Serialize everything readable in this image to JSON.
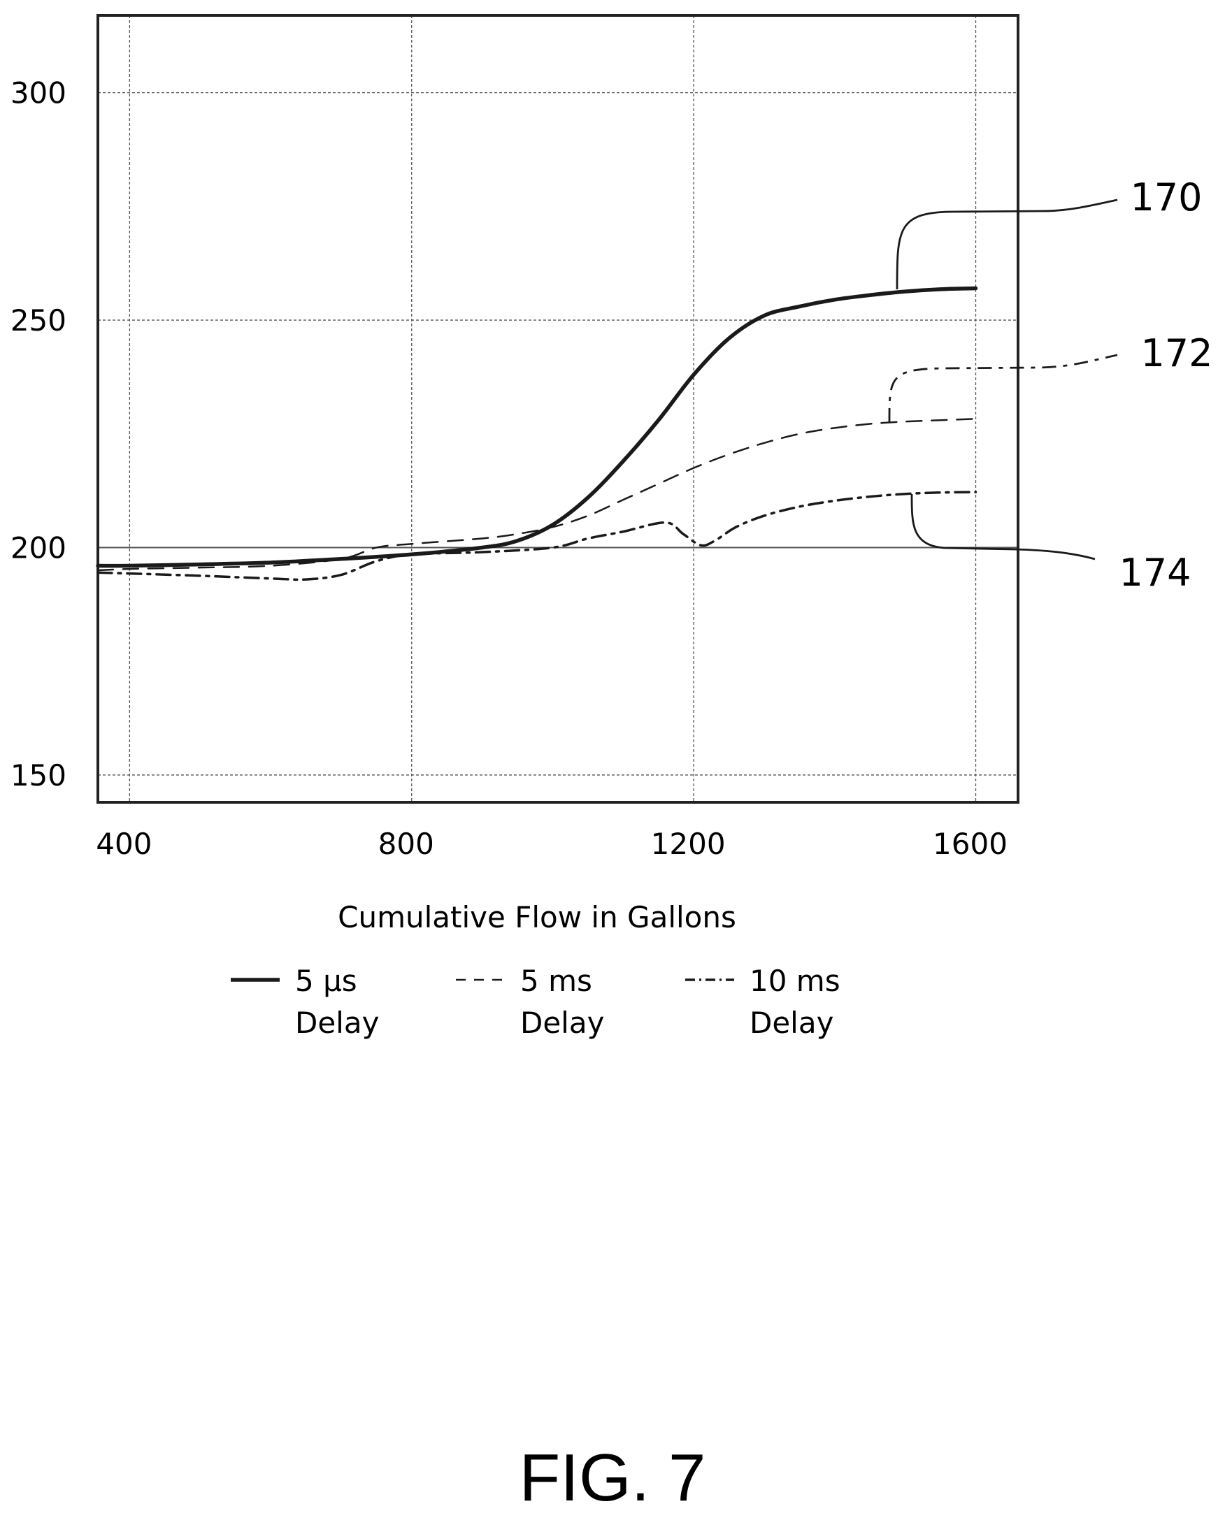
{
  "figure_label": "FIG. 7",
  "chart_data": {
    "type": "line",
    "title": "",
    "xlabel": "Cumulative Flow in Gallons",
    "ylabel": "",
    "xlim": [
      355,
      1660
    ],
    "ylim": [
      144,
      317
    ],
    "x_ticks": [
      "400",
      "800",
      "1200",
      "1600"
    ],
    "y_ticks": [
      "300",
      "250",
      "200",
      "150"
    ],
    "grid": true,
    "legend_position": "bottom",
    "series": [
      {
        "name": "5 μs Delay",
        "legend_line1": "5 μs",
        "legend_line2": "Delay",
        "dash": "solid",
        "callout": "170",
        "x": [
          355,
          400,
          500,
          600,
          700,
          800,
          900,
          950,
          1000,
          1050,
          1100,
          1150,
          1200,
          1250,
          1300,
          1350,
          1400,
          1450,
          1500,
          1550,
          1600
        ],
        "y": [
          196,
          196,
          196.3,
          196.7,
          197.5,
          198.5,
          200,
          201.5,
          205,
          211,
          219,
          228,
          238,
          246,
          251,
          253,
          254.5,
          255.5,
          256.3,
          256.8,
          257
        ]
      },
      {
        "name": "5 ms Delay",
        "legend_line1": "5 ms",
        "legend_line2": "Delay",
        "dash": "dashed",
        "callout": "172",
        "x": [
          355,
          400,
          500,
          600,
          700,
          750,
          800,
          900,
          950,
          1000,
          1050,
          1100,
          1150,
          1200,
          1250,
          1300,
          1350,
          1400,
          1450,
          1500,
          1550,
          1600
        ],
        "y": [
          195,
          195.3,
          195.6,
          196,
          197.5,
          200,
          200.8,
          202,
          203,
          204.5,
          207,
          210.5,
          214,
          217.5,
          220.5,
          223,
          225,
          226.3,
          227.2,
          227.7,
          228,
          228.3
        ]
      },
      {
        "name": "10 ms Delay",
        "legend_line1": "10 ms",
        "legend_line2": "Delay",
        "dash": "dashdot",
        "callout": "174",
        "x": [
          355,
          400,
          500,
          600,
          650,
          700,
          750,
          800,
          900,
          1000,
          1050,
          1100,
          1160,
          1185,
          1210,
          1230,
          1260,
          1300,
          1350,
          1400,
          1450,
          1500,
          1550,
          1600
        ],
        "y": [
          194.5,
          194.3,
          193.8,
          193.2,
          193,
          194,
          197,
          198.5,
          199,
          200,
          202,
          203.5,
          205.5,
          203,
          200.5,
          201.5,
          204.5,
          207,
          209,
          210.3,
          211.2,
          211.8,
          212.1,
          212.2
        ]
      }
    ],
    "callouts": [
      "170",
      "172",
      "174"
    ]
  },
  "colors": {
    "line": "#1a1a1a",
    "grid": "#555555",
    "frame": "#222222"
  }
}
